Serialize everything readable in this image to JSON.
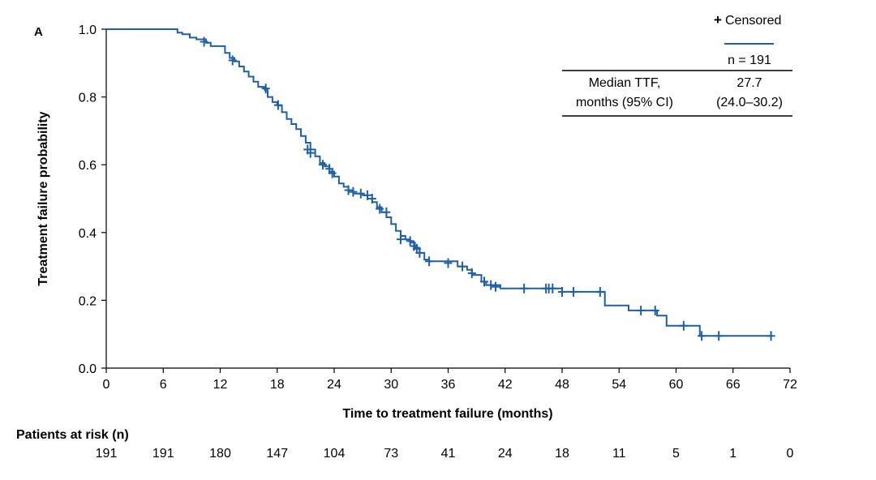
{
  "panel_label": "A",
  "chart_data": {
    "type": "line",
    "title": "",
    "xlabel": "Time to treatment failure (months)",
    "ylabel": "Treatment failure probability",
    "xlim": [
      0,
      72
    ],
    "ylim": [
      0,
      1
    ],
    "xticks": [
      0,
      6,
      12,
      18,
      24,
      30,
      36,
      42,
      48,
      54,
      60,
      66,
      72
    ],
    "yticks": [
      0.0,
      0.2,
      0.4,
      0.6,
      0.8,
      1.0
    ],
    "ytick_labels": [
      "0.0",
      "0.2",
      "0.4",
      "0.6",
      "0.8",
      "1.0"
    ],
    "grid": false,
    "series": [
      {
        "name": "n = 191",
        "color": "#1f5fa6",
        "step_points": [
          [
            0,
            1.0
          ],
          [
            7.5,
            1.0
          ],
          [
            7.5,
            0.99
          ],
          [
            8,
            0.99
          ],
          [
            8,
            0.985
          ],
          [
            8.8,
            0.985
          ],
          [
            8.8,
            0.975
          ],
          [
            9.5,
            0.975
          ],
          [
            9.5,
            0.97
          ],
          [
            10.5,
            0.97
          ],
          [
            10.5,
            0.96
          ],
          [
            11,
            0.96
          ],
          [
            11,
            0.95
          ],
          [
            12.5,
            0.95
          ],
          [
            12.5,
            0.93
          ],
          [
            13,
            0.93
          ],
          [
            13,
            0.915
          ],
          [
            13.5,
            0.915
          ],
          [
            13.5,
            0.905
          ],
          [
            14,
            0.905
          ],
          [
            14,
            0.89
          ],
          [
            14.5,
            0.89
          ],
          [
            14.5,
            0.875
          ],
          [
            15,
            0.875
          ],
          [
            15,
            0.86
          ],
          [
            15.5,
            0.86
          ],
          [
            15.5,
            0.845
          ],
          [
            16,
            0.845
          ],
          [
            16,
            0.83
          ],
          [
            16.7,
            0.83
          ],
          [
            16.7,
            0.82
          ],
          [
            17,
            0.82
          ],
          [
            17,
            0.8
          ],
          [
            17.5,
            0.8
          ],
          [
            17.5,
            0.785
          ],
          [
            18,
            0.785
          ],
          [
            18,
            0.775
          ],
          [
            18.5,
            0.775
          ],
          [
            18.5,
            0.755
          ],
          [
            19,
            0.755
          ],
          [
            19,
            0.735
          ],
          [
            19.5,
            0.735
          ],
          [
            19.5,
            0.72
          ],
          [
            20,
            0.72
          ],
          [
            20,
            0.705
          ],
          [
            20.5,
            0.705
          ],
          [
            20.5,
            0.685
          ],
          [
            21,
            0.685
          ],
          [
            21,
            0.665
          ],
          [
            21.5,
            0.665
          ],
          [
            21.5,
            0.645
          ],
          [
            22,
            0.645
          ],
          [
            22,
            0.625
          ],
          [
            22.5,
            0.625
          ],
          [
            22.5,
            0.605
          ],
          [
            23,
            0.605
          ],
          [
            23,
            0.595
          ],
          [
            23.5,
            0.595
          ],
          [
            23.5,
            0.58
          ],
          [
            24,
            0.58
          ],
          [
            24,
            0.565
          ],
          [
            24.5,
            0.565
          ],
          [
            24.5,
            0.545
          ],
          [
            25,
            0.545
          ],
          [
            25,
            0.535
          ],
          [
            25.5,
            0.535
          ],
          [
            25.5,
            0.525
          ],
          [
            26,
            0.525
          ],
          [
            26,
            0.515
          ],
          [
            27,
            0.515
          ],
          [
            27,
            0.51
          ],
          [
            27.5,
            0.51
          ],
          [
            27.5,
            0.5
          ],
          [
            28,
            0.5
          ],
          [
            28,
            0.49
          ],
          [
            28.5,
            0.49
          ],
          [
            28.5,
            0.475
          ],
          [
            29,
            0.475
          ],
          [
            29,
            0.46
          ],
          [
            29.5,
            0.46
          ],
          [
            29.5,
            0.445
          ],
          [
            30,
            0.445
          ],
          [
            30,
            0.425
          ],
          [
            30.5,
            0.425
          ],
          [
            30.5,
            0.405
          ],
          [
            31,
            0.405
          ],
          [
            31,
            0.39
          ],
          [
            31.5,
            0.39
          ],
          [
            31.5,
            0.38
          ],
          [
            32,
            0.38
          ],
          [
            32,
            0.37
          ],
          [
            32.5,
            0.37
          ],
          [
            32.5,
            0.355
          ],
          [
            33,
            0.355
          ],
          [
            33,
            0.34
          ],
          [
            33.5,
            0.34
          ],
          [
            33.5,
            0.32
          ],
          [
            34,
            0.32
          ],
          [
            34,
            0.315
          ],
          [
            37,
            0.315
          ],
          [
            37,
            0.3
          ],
          [
            38,
            0.3
          ],
          [
            38,
            0.29
          ],
          [
            38.5,
            0.29
          ],
          [
            38.5,
            0.275
          ],
          [
            39.5,
            0.275
          ],
          [
            39.5,
            0.255
          ],
          [
            40,
            0.255
          ],
          [
            40,
            0.245
          ],
          [
            41.5,
            0.245
          ],
          [
            41.5,
            0.235
          ],
          [
            48,
            0.235
          ],
          [
            48,
            0.225
          ],
          [
            52.5,
            0.225
          ],
          [
            52.5,
            0.185
          ],
          [
            55,
            0.185
          ],
          [
            55,
            0.17
          ],
          [
            58,
            0.17
          ],
          [
            58,
            0.155
          ],
          [
            59,
            0.155
          ],
          [
            59,
            0.125
          ],
          [
            62.5,
            0.125
          ],
          [
            62.5,
            0.095
          ],
          [
            70,
            0.095
          ]
        ],
        "censored": [
          [
            10.3,
            0.963
          ],
          [
            13.3,
            0.908
          ],
          [
            16.8,
            0.825
          ],
          [
            18.1,
            0.776
          ],
          [
            21.2,
            0.645
          ],
          [
            21.5,
            0.635
          ],
          [
            22.8,
            0.6
          ],
          [
            23.5,
            0.588
          ],
          [
            23.8,
            0.575
          ],
          [
            25.5,
            0.525
          ],
          [
            26,
            0.52
          ],
          [
            26.8,
            0.515
          ],
          [
            27.5,
            0.51
          ],
          [
            28,
            0.5
          ],
          [
            28.8,
            0.47
          ],
          [
            29.5,
            0.46
          ],
          [
            31,
            0.38
          ],
          [
            32,
            0.375
          ],
          [
            32.4,
            0.36
          ],
          [
            32.7,
            0.352
          ],
          [
            33,
            0.34
          ],
          [
            34,
            0.315
          ],
          [
            36,
            0.31
          ],
          [
            37.5,
            0.3
          ],
          [
            38.5,
            0.28
          ],
          [
            39.8,
            0.255
          ],
          [
            40.5,
            0.245
          ],
          [
            41,
            0.24
          ],
          [
            44,
            0.235
          ],
          [
            46.3,
            0.235
          ],
          [
            46.6,
            0.235
          ],
          [
            47,
            0.235
          ],
          [
            48,
            0.225
          ],
          [
            49.2,
            0.225
          ],
          [
            52,
            0.225
          ],
          [
            56.3,
            0.17
          ],
          [
            57.8,
            0.17
          ],
          [
            60.8,
            0.125
          ],
          [
            62.7,
            0.095
          ],
          [
            64.5,
            0.095
          ],
          [
            70,
            0.095
          ]
        ]
      }
    ],
    "legend": {
      "censored_label": "Censored",
      "censored_symbol": "+",
      "column_header": "n = 191",
      "row_label_line1": "Median TTF,",
      "row_label_line2": "months (95% CI)",
      "median_value": "27.7",
      "median_ci": "(24.0–30.2)",
      "placement": "top-right"
    },
    "risk_table": {
      "title": "Patients at risk (n)",
      "times": [
        0,
        6,
        12,
        18,
        24,
        30,
        36,
        42,
        48,
        54,
        60,
        66,
        72
      ],
      "values": [
        "191",
        "191",
        "180",
        "147",
        "104",
        "73",
        "41",
        "24",
        "18",
        "11",
        "5",
        "1",
        "0"
      ]
    }
  }
}
